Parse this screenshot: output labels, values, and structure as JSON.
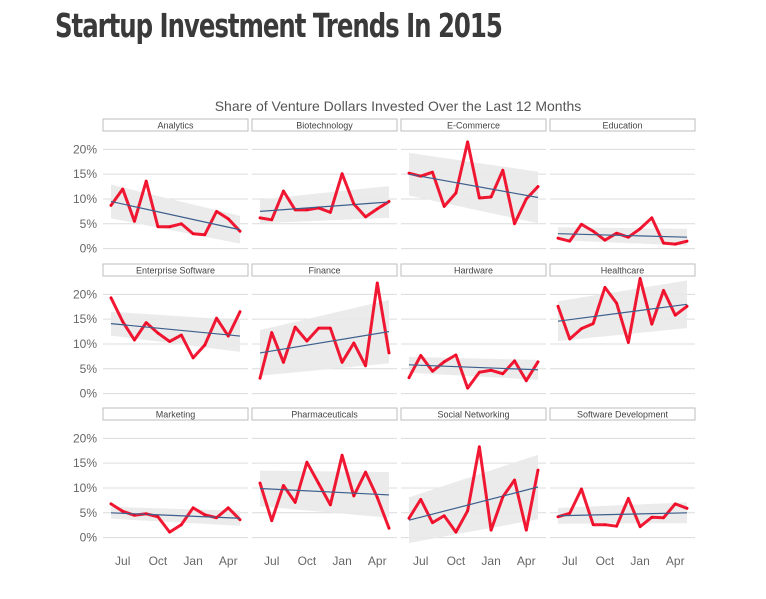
{
  "page": {
    "title": "Startup Investment Trends In 2015"
  },
  "chart_data": {
    "type": "line",
    "title": "Share of Venture Dollars Invested Over the Last 12 Months",
    "x": [
      "Jun",
      "Jul",
      "Aug",
      "Sep",
      "Oct",
      "Nov",
      "Dec",
      "Jan",
      "Feb",
      "Mar",
      "Apr",
      "May"
    ],
    "x_tick_labels": [
      "Jul",
      "Oct",
      "Jan",
      "Apr"
    ],
    "x_tick_positions": [
      "Jul",
      "Oct",
      "Jan",
      "Apr"
    ],
    "y_tick_labels": [
      "0%",
      "5%",
      "10%",
      "15%",
      "20%"
    ],
    "y_tick_values": [
      0,
      5,
      10,
      15,
      20
    ],
    "ylim": [
      -2.5,
      23.5
    ],
    "facet_columns": 4,
    "grid": true,
    "line_color": "#f0001e",
    "trend_color": "#3d5f8c",
    "band_color": "#e9e9e9",
    "panels": [
      {
        "name": "Analytics",
        "values": [
          8.7,
          12.0,
          5.5,
          13.6,
          4.4,
          4.4,
          5.0,
          3.0,
          2.8,
          7.5,
          6.0,
          3.5
        ],
        "trend": [
          9.5,
          3.8
        ],
        "band": [
          3.4,
          2.8
        ]
      },
      {
        "name": "Biotechnology",
        "values": [
          6.2,
          5.8,
          11.6,
          7.8,
          7.8,
          8.2,
          7.3,
          15.1,
          9.0,
          6.4,
          8.0,
          9.5
        ],
        "trend": [
          7.5,
          9.4
        ],
        "band": [
          2.4,
          3.2
        ]
      },
      {
        "name": "E-Commerce",
        "values": [
          15.2,
          14.6,
          15.4,
          8.5,
          11.2,
          21.5,
          10.2,
          10.4,
          15.8,
          5.0,
          10.0,
          12.5
        ],
        "trend": [
          15.0,
          10.3
        ],
        "band": [
          4.3,
          5.2
        ]
      },
      {
        "name": "Education",
        "values": [
          2.1,
          1.5,
          4.9,
          3.5,
          1.7,
          3.1,
          2.3,
          4.0,
          6.2,
          1.1,
          0.9,
          1.5
        ],
        "trend": [
          3.0,
          2.3
        ],
        "band": [
          1.3,
          1.7
        ]
      },
      {
        "name": "Enterprise Software",
        "values": [
          19.3,
          14.5,
          10.8,
          14.3,
          12.2,
          10.5,
          11.8,
          7.2,
          9.8,
          15.2,
          11.6,
          16.5
        ],
        "trend": [
          14.1,
          11.6
        ],
        "band": [
          2.4,
          3.2
        ]
      },
      {
        "name": "Finance",
        "values": [
          3.1,
          12.3,
          6.3,
          13.4,
          10.6,
          13.2,
          13.2,
          6.3,
          10.2,
          5.6,
          22.3,
          8.2
        ],
        "trend": [
          8.2,
          12.5
        ],
        "band": [
          4.6,
          6.4
        ]
      },
      {
        "name": "Hardware",
        "values": [
          3.2,
          7.7,
          4.5,
          6.4,
          7.8,
          1.1,
          4.3,
          4.7,
          4.0,
          6.6,
          2.6,
          6.4
        ],
        "trend": [
          5.8,
          4.8
        ],
        "band": [
          1.6,
          2.0
        ]
      },
      {
        "name": "Healthcare",
        "values": [
          17.6,
          11.0,
          13.1,
          14.1,
          21.4,
          18.2,
          10.3,
          23.2,
          14.0,
          20.8,
          15.8,
          17.6
        ],
        "trend": [
          14.6,
          18.0
        ],
        "band": [
          4.0,
          4.8
        ]
      },
      {
        "name": "Marketing",
        "values": [
          6.8,
          5.3,
          4.5,
          4.8,
          4.2,
          1.1,
          2.6,
          6.0,
          4.6,
          4.0,
          6.0,
          3.6
        ],
        "trend": [
          5.0,
          3.9
        ],
        "band": [
          1.2,
          1.5
        ]
      },
      {
        "name": "Pharmaceuticals",
        "values": [
          11.0,
          3.4,
          10.5,
          7.1,
          15.2,
          10.9,
          6.6,
          16.6,
          8.4,
          13.2,
          8.1,
          1.9
        ],
        "trend": [
          9.9,
          8.6
        ],
        "band": [
          3.6,
          4.6
        ]
      },
      {
        "name": "Social Networking",
        "values": [
          3.9,
          7.7,
          3.0,
          4.4,
          1.1,
          5.4,
          18.3,
          1.5,
          8.2,
          11.6,
          1.5,
          13.6
        ],
        "trend": [
          3.5,
          10.2
        ],
        "band": [
          4.6,
          6.5
        ]
      },
      {
        "name": "Software Development",
        "values": [
          4.2,
          4.9,
          9.8,
          2.6,
          2.6,
          2.3,
          7.9,
          2.2,
          4.1,
          4.0,
          6.8,
          5.9
        ],
        "trend": [
          4.4,
          5.0
        ],
        "band": [
          1.6,
          2.1
        ]
      }
    ]
  }
}
